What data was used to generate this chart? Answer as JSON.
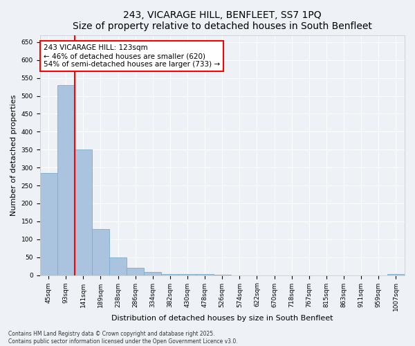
{
  "title": "243, VICARAGE HILL, BENFLEET, SS7 1PQ",
  "subtitle": "Size of property relative to detached houses in South Benfleet",
  "xlabel": "Distribution of detached houses by size in South Benfleet",
  "ylabel": "Number of detached properties",
  "bar_color": "#aac4e0",
  "bar_edge_color": "#7aadcc",
  "categories": [
    "45sqm",
    "93sqm",
    "141sqm",
    "189sqm",
    "238sqm",
    "286sqm",
    "334sqm",
    "382sqm",
    "430sqm",
    "478sqm",
    "526sqm",
    "574sqm",
    "622sqm",
    "670sqm",
    "718sqm",
    "767sqm",
    "815sqm",
    "863sqm",
    "911sqm",
    "959sqm",
    "1007sqm"
  ],
  "values": [
    285,
    530,
    350,
    128,
    50,
    20,
    8,
    3,
    3,
    3,
    1,
    0,
    0,
    0,
    0,
    0,
    0,
    0,
    0,
    0,
    3
  ],
  "ylim": [
    0,
    670
  ],
  "yticks": [
    0,
    50,
    100,
    150,
    200,
    250,
    300,
    350,
    400,
    450,
    500,
    550,
    600,
    650
  ],
  "red_line_x": 2.0,
  "annotation_text": "243 VICARAGE HILL: 123sqm\n← 46% of detached houses are smaller (620)\n54% of semi-detached houses are larger (733) →",
  "annotation_box_color": "white",
  "annotation_box_edge_color": "red",
  "footer_text": "Contains HM Land Registry data © Crown copyright and database right 2025.\nContains public sector information licensed under the Open Government Licence v3.0.",
  "background_color": "#eef2f7",
  "grid_color": "white",
  "title_fontsize": 10,
  "subtitle_fontsize": 8.5,
  "tick_fontsize": 6.5,
  "ylabel_fontsize": 8,
  "xlabel_fontsize": 8,
  "annotation_fontsize": 7.5,
  "footer_fontsize": 5.5
}
